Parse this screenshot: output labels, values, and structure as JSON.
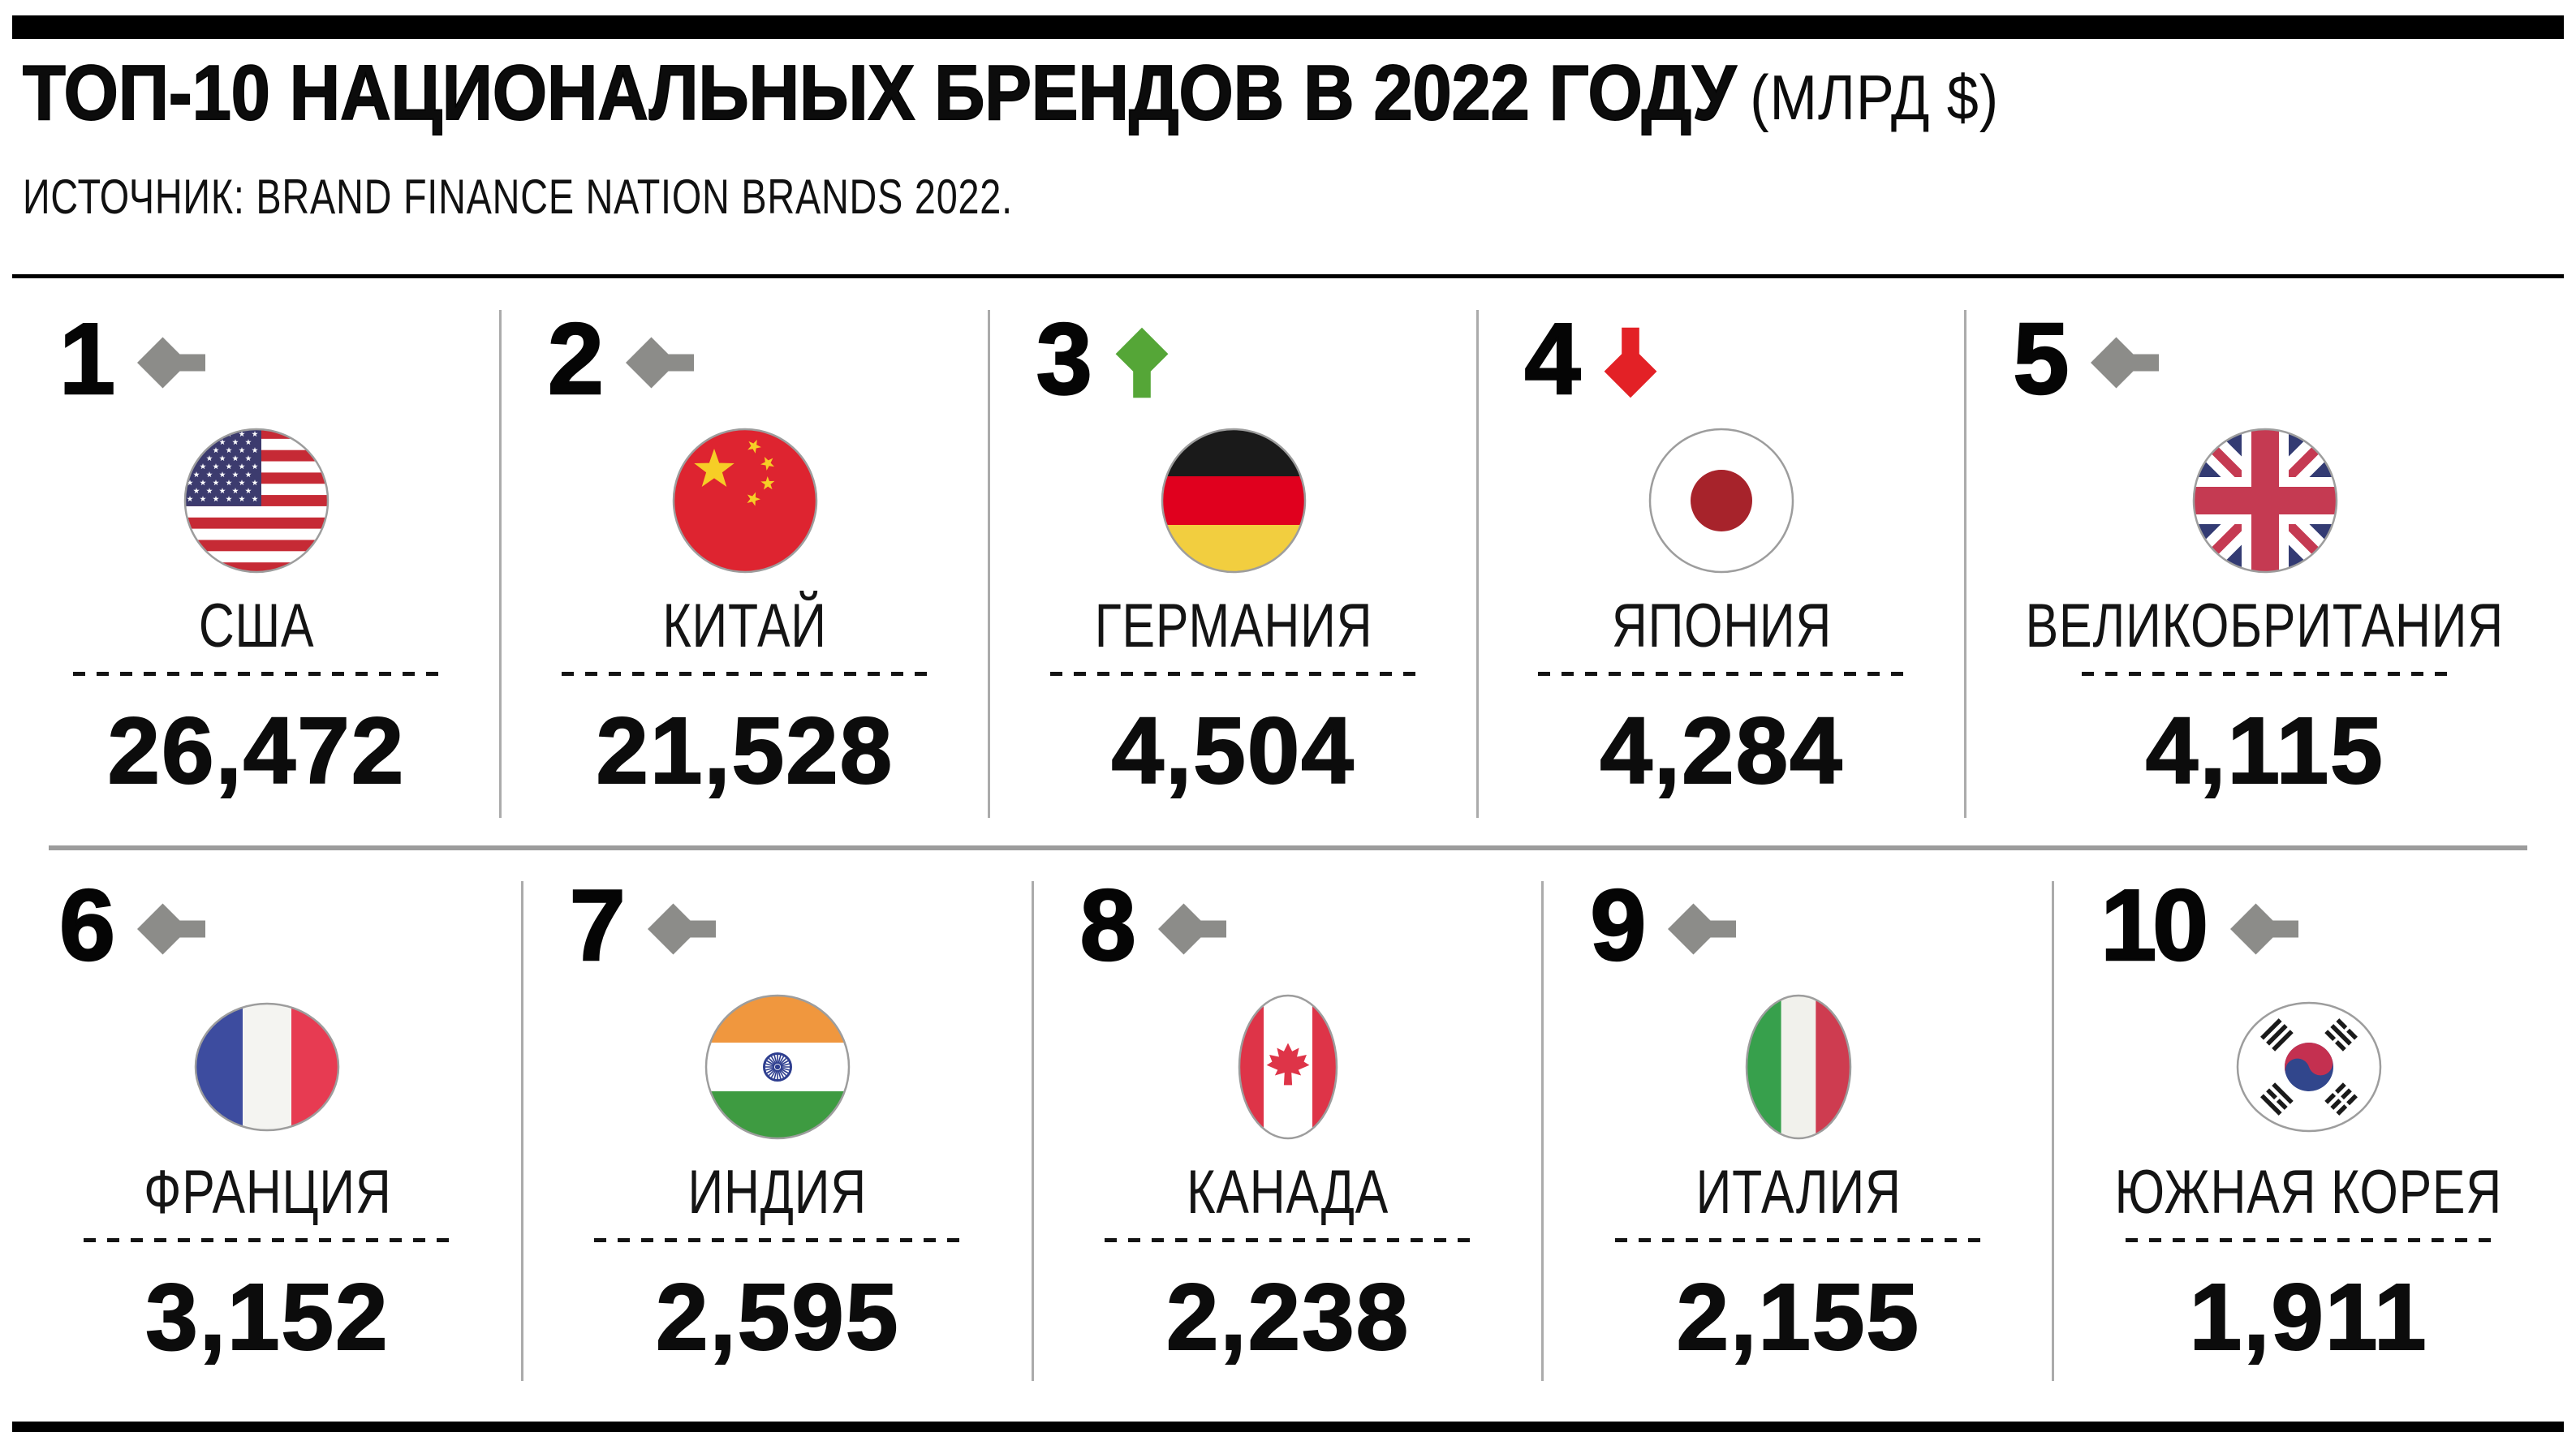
{
  "header": {
    "title": "ТОП-10 НАЦИОНАЛЬНЫХ БРЕНДОВ В 2022 ГОДУ",
    "title_suffix": "(МЛРД $)",
    "source": "ИСТОЧНИК: BRAND FINANCE NATION BRANDS 2022."
  },
  "colors": {
    "trend_same": "#8C8C89",
    "trend_up": "#55A637",
    "trend_down": "#E32126",
    "accent_bar": "#000000",
    "row_separator": "#9C9C9C",
    "column_divider": "#ABABAB"
  },
  "cells": [
    {
      "rank": "1",
      "trend": "same",
      "flag": "usa",
      "name": "США",
      "value": "26,472"
    },
    {
      "rank": "2",
      "trend": "same",
      "flag": "china",
      "name": "КИТАЙ",
      "value": "21,528"
    },
    {
      "rank": "3",
      "trend": "up",
      "flag": "germany",
      "name": "ГЕРМАНИЯ",
      "value": "4,504"
    },
    {
      "rank": "4",
      "trend": "down",
      "flag": "japan",
      "name": "ЯПОНИЯ",
      "value": "4,284"
    },
    {
      "rank": "5",
      "trend": "same",
      "flag": "uk",
      "name": "ВЕЛИКОБРИТАНИЯ",
      "value": "4,115"
    },
    {
      "rank": "6",
      "trend": "same",
      "flag": "france",
      "name": "ФРАНЦИЯ",
      "value": "3,152"
    },
    {
      "rank": "7",
      "trend": "same",
      "flag": "india",
      "name": "ИНДИЯ",
      "value": "2,595"
    },
    {
      "rank": "8",
      "trend": "same",
      "flag": "canada",
      "name": "КАНАДА",
      "value": "2,238"
    },
    {
      "rank": "9",
      "trend": "same",
      "flag": "italy",
      "name": "ИТАЛИЯ",
      "value": "2,155"
    },
    {
      "rank": "10",
      "trend": "same",
      "flag": "south-korea",
      "name": "ЮЖНАЯ КОРЕЯ",
      "value": "1,911"
    }
  ],
  "chart_data": {
    "type": "table",
    "title": "ТОП-10 НАЦИОНАЛЬНЫХ БРЕНДОВ В 2022 ГОДУ (МЛРД $)",
    "source": "ИСТОЧНИК: BRAND FINANCE NATION BRANDS 2022.",
    "unit": "млрд $",
    "columns": [
      "rank",
      "country",
      "brand_value_bln_usd",
      "rank_change"
    ],
    "rows": [
      [
        1,
        "США",
        26472,
        "no-change"
      ],
      [
        2,
        "КИТАЙ",
        21528,
        "no-change"
      ],
      [
        3,
        "ГЕРМАНИЯ",
        4504,
        "up"
      ],
      [
        4,
        "ЯПОНИЯ",
        4284,
        "down"
      ],
      [
        5,
        "ВЕЛИКОБРИТАНИЯ",
        4115,
        "no-change"
      ],
      [
        6,
        "ФРАНЦИЯ",
        3152,
        "no-change"
      ],
      [
        7,
        "ИНДИЯ",
        2595,
        "no-change"
      ],
      [
        8,
        "КАНАДА",
        2238,
        "no-change"
      ],
      [
        9,
        "ИТАЛИЯ",
        2155,
        "no-change"
      ],
      [
        10,
        "ЮЖНАЯ КОРЕЯ",
        1911,
        "no-change"
      ]
    ]
  }
}
